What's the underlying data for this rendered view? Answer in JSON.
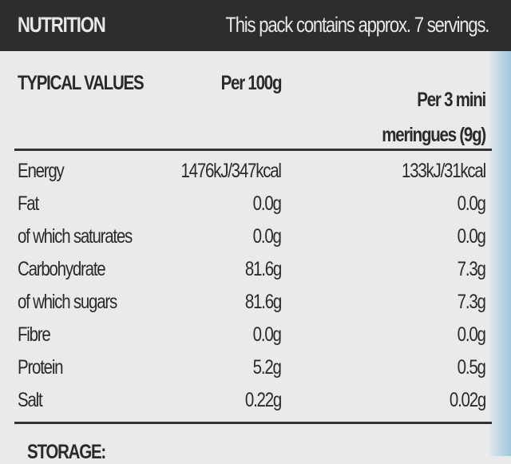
{
  "header": {
    "title": "NUTRITION",
    "note": "This pack contains approx. 7 servings."
  },
  "table": {
    "columns": [
      "TYPICAL VALUES",
      "Per 100g",
      "Per 3 mini meringues (9g)"
    ],
    "rows": [
      [
        "Energy",
        "1476kJ/347kcal",
        "133kJ/31kcal"
      ],
      [
        "Fat",
        "0.0g",
        "0.0g"
      ],
      [
        "of which saturates",
        "0.0g",
        "0.0g"
      ],
      [
        "Carbohydrate",
        "81.6g",
        "7.3g"
      ],
      [
        "of which sugars",
        "81.6g",
        "7.3g"
      ],
      [
        "Fibre",
        "0.0g",
        "0.0g"
      ],
      [
        "Protein",
        "5.2g",
        "0.5g"
      ],
      [
        "Salt",
        "0.22g",
        "0.02g"
      ]
    ]
  },
  "footer": {
    "label": "STORAGE:"
  }
}
